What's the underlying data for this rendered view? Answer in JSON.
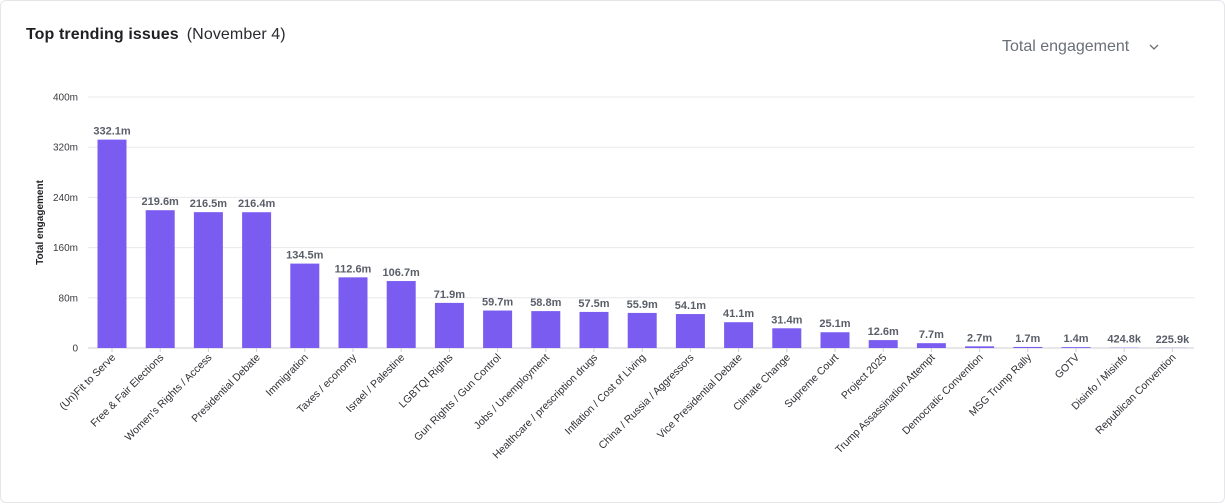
{
  "header": {
    "title": "Top trending issues",
    "date": "(November 4)",
    "metric_selected": "Total engagement"
  },
  "colors": {
    "bar": "#7b5cf0",
    "grid": "#e8e8ee"
  },
  "chart_data": {
    "type": "bar",
    "title": "Top trending issues (November 4)",
    "xlabel": "",
    "ylabel": "Total engagement",
    "ylim": [
      0,
      400000000
    ],
    "yticks": [
      0,
      80000000,
      160000000,
      240000000,
      320000000,
      400000000
    ],
    "ytick_labels": [
      "0",
      "80m",
      "160m",
      "240m",
      "320m",
      "400m"
    ],
    "categories": [
      "(Un)Fit to Serve",
      "Free & Fair Elections",
      "Women's Rights / Access",
      "Presidential Debate",
      "Immigration",
      "Taxes / economy",
      "Israel / Palestine",
      "LGBTQI Rights",
      "Gun Rights / Gun Control",
      "Jobs / Unemployment",
      "Healthcare / prescription drugs",
      "Inflation / Cost of Living",
      "China / Russia / Aggressors",
      "Vice Presidential Debate",
      "Climate Change",
      "Supreme Court",
      "Project 2025",
      "Trump Assassination Attempt",
      "Democratic Convention",
      "MSG Trump Rally",
      "GOTV",
      "Disinfo / Misinfo",
      "Republican Convention"
    ],
    "values": [
      332100000,
      219600000,
      216500000,
      216400000,
      134500000,
      112600000,
      106700000,
      71900000,
      59700000,
      58800000,
      57500000,
      55900000,
      54100000,
      41100000,
      31400000,
      25100000,
      12600000,
      7700000,
      2700000,
      1700000,
      1400000,
      424800,
      225900
    ],
    "value_labels": [
      "332.1m",
      "219.6m",
      "216.5m",
      "216.4m",
      "134.5m",
      "112.6m",
      "106.7m",
      "71.9m",
      "59.7m",
      "58.8m",
      "57.5m",
      "55.9m",
      "54.1m",
      "41.1m",
      "31.4m",
      "25.1m",
      "12.6m",
      "7.7m",
      "2.7m",
      "1.7m",
      "1.4m",
      "424.8k",
      "225.9k"
    ],
    "grid": true,
    "legend": "none"
  }
}
